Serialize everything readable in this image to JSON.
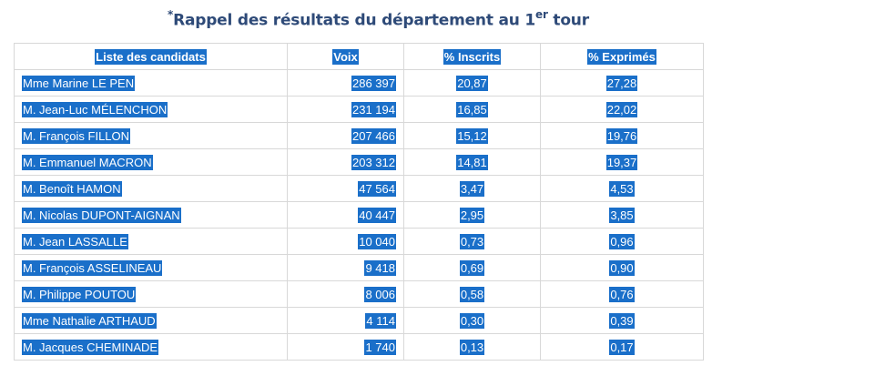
{
  "title": {
    "asterisk": "*",
    "main": "Rappel des résultats du département au 1",
    "superscript": "er",
    "suffix": " tour"
  },
  "table": {
    "headers": [
      "Liste des candidats",
      "Voix",
      "% Inscrits",
      "% Exprimés"
    ],
    "rows": [
      {
        "candidat": "Mme Marine LE PEN",
        "voix": "286 397",
        "inscrits": "20,87",
        "exprimes": "27,28"
      },
      {
        "candidat": "M. Jean-Luc MÉLENCHON",
        "voix": "231 194",
        "inscrits": "16,85",
        "exprimes": "22,02"
      },
      {
        "candidat": "M. François FILLON",
        "voix": "207 466",
        "inscrits": "15,12",
        "exprimes": "19,76"
      },
      {
        "candidat": "M. Emmanuel MACRON",
        "voix": "203 312",
        "inscrits": "14,81",
        "exprimes": "19,37"
      },
      {
        "candidat": "M. Benoît HAMON",
        "voix": "47 564",
        "inscrits": "3,47",
        "exprimes": "4,53"
      },
      {
        "candidat": "M. Nicolas DUPONT-AIGNAN",
        "voix": "40 447",
        "inscrits": "2,95",
        "exprimes": "3,85"
      },
      {
        "candidat": "M. Jean LASSALLE",
        "voix": "10 040",
        "inscrits": "0,73",
        "exprimes": "0,96"
      },
      {
        "candidat": "M. François ASSELINEAU",
        "voix": "9 418",
        "inscrits": "0,69",
        "exprimes": "0,90"
      },
      {
        "candidat": "M. Philippe POUTOU",
        "voix": "8 006",
        "inscrits": "0,58",
        "exprimes": "0,76"
      },
      {
        "candidat": "Mme Nathalie ARTHAUD",
        "voix": "4 114",
        "inscrits": "0,30",
        "exprimes": "0,39"
      },
      {
        "candidat": "M. Jacques CHEMINADE",
        "voix": "1 740",
        "inscrits": "0,13",
        "exprimes": "0,17"
      }
    ]
  },
  "colors": {
    "selection": "#1a6fc9",
    "title": "#2e4a78",
    "border": "#d8d8d8"
  }
}
